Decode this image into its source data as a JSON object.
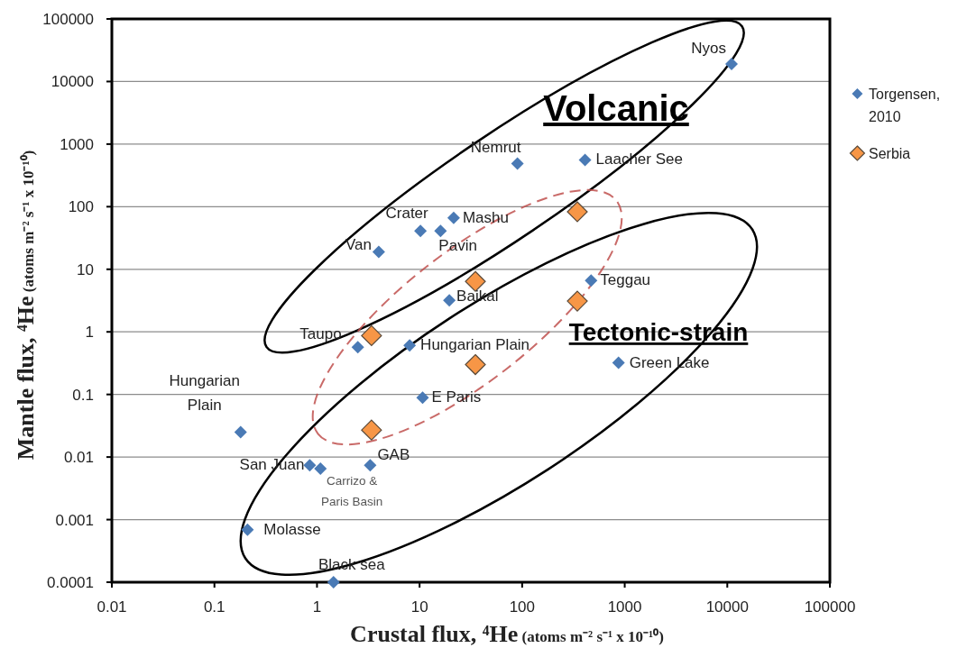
{
  "chart_data": {
    "type": "scatter",
    "xlabel": "Crustal flux, ⁴He (atoms m⁻² s⁻¹ x 10⁻¹⁰)",
    "ylabel": "Mantle flux, ⁴He (atoms m⁻² s⁻¹ x 10⁻¹⁰)",
    "log": "xy",
    "grid": "y",
    "legend": "right",
    "marker": "diamond",
    "xlim": [
      0.01,
      100000
    ],
    "xticks": [
      0.01,
      0.1,
      1,
      10,
      100,
      1000,
      10000,
      100000
    ],
    "ylim": [
      0.0001,
      100000
    ],
    "yticks": [
      0.0001,
      0.001,
      0.01,
      0.1,
      1,
      10,
      100,
      1000,
      10000,
      100000
    ],
    "series": [
      {
        "name": "Torgensen, 2010",
        "color": "#4a7ab5",
        "x": [
          11000,
          90,
          410,
          10.2,
          21.5,
          16,
          4.0,
          19.5,
          470,
          2.5,
          8.0,
          870,
          10.7,
          0.18,
          0.85,
          1.08,
          3.3,
          0.21,
          1.45
        ],
        "values": [
          19000,
          490,
          560,
          41,
          66,
          41,
          19,
          3.2,
          6.6,
          0.57,
          0.61,
          0.32,
          0.089,
          0.025,
          0.0074,
          0.0065,
          0.0074,
          0.00069,
          0.0001
        ]
      },
      {
        "name": "Serbia",
        "color": "#f79646",
        "x": [
          345,
          35,
          345,
          3.4,
          35,
          3.4
        ],
        "values": [
          83,
          6.4,
          3.1,
          0.87,
          0.3,
          0.027
        ]
      }
    ],
    "annotations": [
      {
        "text": "Nyos",
        "x": 11000,
        "y": 19000
      },
      {
        "text": "Nemrut",
        "x": 90,
        "y": 490
      },
      {
        "text": "Laacher See",
        "x": 410,
        "y": 560
      },
      {
        "text": "Crater",
        "x": 10.2,
        "y": 41
      },
      {
        "text": "Mashu",
        "x": 21.5,
        "y": 66
      },
      {
        "text": "Pavin",
        "x": 16,
        "y": 41
      },
      {
        "text": "Van",
        "x": 4.0,
        "y": 19
      },
      {
        "text": "Baikal",
        "x": 19.5,
        "y": 3.2
      },
      {
        "text": "Teggau",
        "x": 470,
        "y": 6.6
      },
      {
        "text": "Taupo",
        "x": 2.5,
        "y": 0.57
      },
      {
        "text": "Hungarian Plain",
        "x": 8.0,
        "y": 0.61
      },
      {
        "text": "Green Lake",
        "x": 870,
        "y": 0.32
      },
      {
        "text": "E Paris",
        "x": 10.7,
        "y": 0.089
      },
      {
        "text": "Hungarian Plain",
        "x": 0.18,
        "y": 0.025
      },
      {
        "text": "San Juan",
        "x": 0.85,
        "y": 0.0074
      },
      {
        "text": "Carrizo & Paris Basin",
        "x": 1.08,
        "y": 0.0065
      },
      {
        "text": "GAB",
        "x": 3.3,
        "y": 0.0074
      },
      {
        "text": "Molasse",
        "x": 0.21,
        "y": 0.00069
      },
      {
        "text": "Black sea",
        "x": 1.45,
        "y": 0.0001
      },
      "Volcanic",
      "Tectonic-strain"
    ]
  }
}
